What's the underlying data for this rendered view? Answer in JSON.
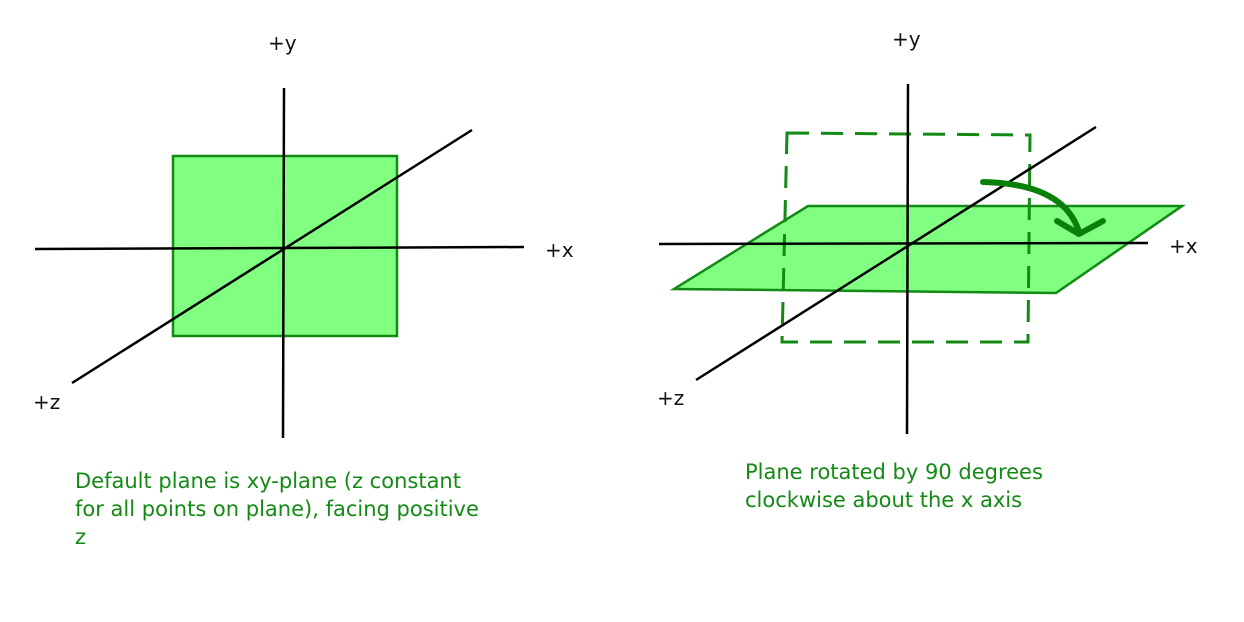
{
  "colors": {
    "plane_fill": "#80ff80",
    "plane_stroke": "#138a13",
    "arrow": "#0a800a",
    "axis": "#000000",
    "caption_text": "#138a13"
  },
  "left_panel": {
    "labels": {
      "y": "+y",
      "x": "+x",
      "z": "+z"
    },
    "caption": "Default plane is xy-plane (z constant for all points on plane), facing positive z"
  },
  "right_panel": {
    "labels": {
      "y": "+y",
      "x": "+x",
      "z": "+z"
    },
    "caption": "Plane rotated by 90 degrees clockwise about the x axis"
  }
}
